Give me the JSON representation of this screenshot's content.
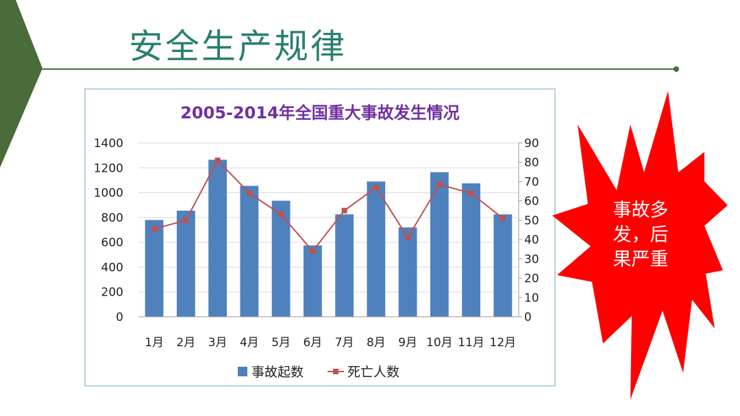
{
  "slide": {
    "title": "安全生产规律",
    "callout_lines": [
      "事故多",
      "发，后",
      "果严重"
    ]
  },
  "colors": {
    "title": "#2a7f70",
    "chevron": "#4a6b3a",
    "rule": "#4a6b3a",
    "bar": "#4f81bd",
    "line": "#c0504d",
    "chart_title": "#7030a0",
    "burst": "#ff0000"
  },
  "chart_data": {
    "type": "bar",
    "title": "2005-2014年全国重大事故发生情况",
    "categories": [
      "1月",
      "2月",
      "3月",
      "4月",
      "5月",
      "6月",
      "7月",
      "8月",
      "9月",
      "10月",
      "11月",
      "12月"
    ],
    "series": [
      {
        "name": "事故起数",
        "type": "bar",
        "axis": "left",
        "values": [
          780,
          855,
          1265,
          1055,
          935,
          575,
          825,
          1090,
          720,
          1165,
          1075,
          825
        ]
      },
      {
        "name": "死亡人数",
        "type": "line",
        "axis": "right",
        "values": [
          45.5,
          50,
          81,
          64,
          53,
          34,
          55,
          67,
          41,
          68.5,
          64,
          51
        ]
      }
    ],
    "y_left": {
      "min": 0,
      "max": 1400,
      "step": 200,
      "ticks": [
        "0",
        "200",
        "400",
        "600",
        "800",
        "1000",
        "1200",
        "1400"
      ]
    },
    "y_right": {
      "min": 0,
      "max": 90,
      "step": 10,
      "ticks": [
        "0",
        "10",
        "20",
        "30",
        "40",
        "50",
        "60",
        "70",
        "80",
        "90"
      ]
    },
    "grid": true,
    "legend_position": "bottom"
  }
}
